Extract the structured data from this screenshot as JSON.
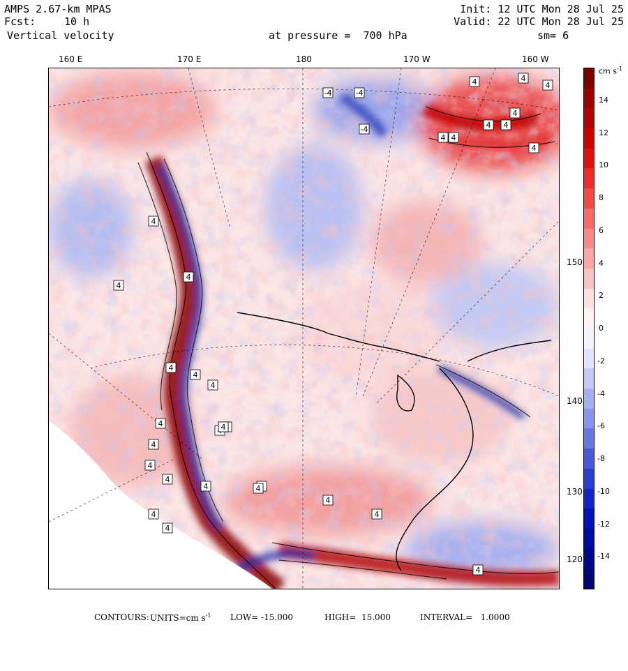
{
  "header": {
    "model": "AMPS 2.67-km MPAS",
    "forecast_label": "Fcst:",
    "forecast_value": "10 h",
    "variable": "Vertical velocity",
    "level": "at pressure =  700 hPa",
    "init": "Init: 12 UTC Mon 28 Jul 25",
    "valid": "Valid: 22 UTC Mon 28 Jul 25",
    "smoothing": "sm= 6"
  },
  "longitude_labels": [
    "160 E",
    "170 E",
    "180",
    "170 W",
    "160 W"
  ],
  "latitude_labels": [
    "150 W",
    "140 W",
    "130 W",
    "120 W"
  ],
  "colorbar": {
    "units": "cm s",
    "units_exp": "-1",
    "ticks": [
      "14",
      "12",
      "10",
      "8",
      "6",
      "4",
      "2",
      "0",
      "-2",
      "-4",
      "-6",
      "-8",
      "-10",
      "-12",
      "-14"
    ],
    "colors": [
      "#7a0000",
      "#990000",
      "#b30000",
      "#cc0000",
      "#e01010",
      "#ee2a2a",
      "#f24a4a",
      "#f56b6b",
      "#f78a8a",
      "#f9a8a8",
      "#fbc4c4",
      "#fde0e0",
      "#fff3f3",
      "#f3f3ff",
      "#e0e3fb",
      "#c4caf5",
      "#a8b0ef",
      "#8a94e8",
      "#6b77e0",
      "#4a58d8",
      "#2a3bd0",
      "#1024c8",
      "#0012b8",
      "#000ca0",
      "#000888",
      "#000670"
    ]
  },
  "contour_labels": [
    "-4",
    "-4",
    "-4",
    "4",
    "4",
    "4",
    "4",
    "4",
    "4",
    "4",
    "4",
    "4",
    "4",
    "4",
    "4",
    "4",
    "4",
    "4",
    "4",
    "4",
    "4",
    "4",
    "4",
    "4",
    "4",
    "4",
    "4",
    "4",
    "4",
    "4",
    "4",
    "4",
    "4",
    "4"
  ],
  "footer": {
    "contours": "CONTOURS:",
    "units": "UNITS=cm s",
    "units_exp": "-1",
    "low": "LOW= -15.000",
    "high": "HIGH=  15.000",
    "interval": "INTERVAL=   1.0000"
  },
  "colors": {
    "positive": "#d42020",
    "negative": "#2030c0",
    "neutral": "#ffffff",
    "outline": "#000000"
  }
}
